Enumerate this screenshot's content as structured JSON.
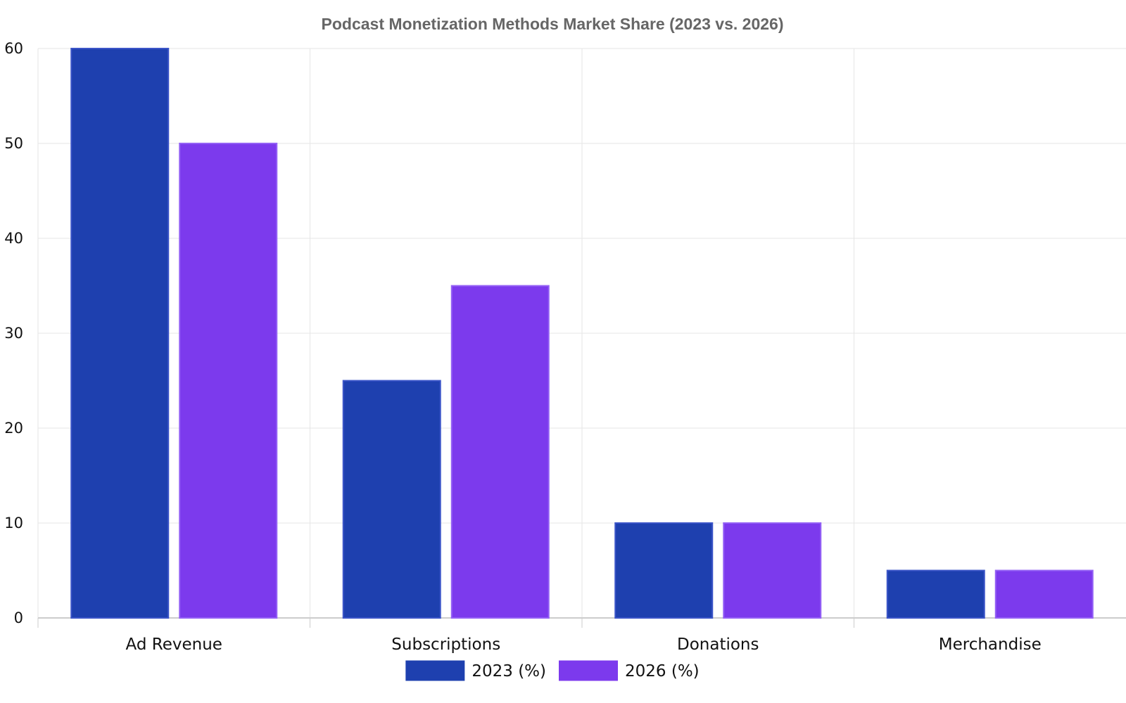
{
  "chart_data": {
    "type": "bar",
    "title": "Podcast Monetization Methods Market Share (2023 vs. 2026)",
    "xlabel": "",
    "ylabel": "",
    "categories": [
      "Ad Revenue",
      "Subscriptions",
      "Donations",
      "Merchandise"
    ],
    "series": [
      {
        "name": "2023 (%)",
        "values": [
          60,
          25,
          10,
          5
        ],
        "color": "#1e40af"
      },
      {
        "name": "2026 (%)",
        "values": [
          50,
          35,
          10,
          5
        ],
        "color": "#7c3aed"
      }
    ],
    "ylim": [
      0,
      60
    ],
    "yticks": [
      0,
      10,
      20,
      30,
      40,
      50,
      60
    ],
    "grid": true,
    "legend_position": "bottom-center"
  }
}
